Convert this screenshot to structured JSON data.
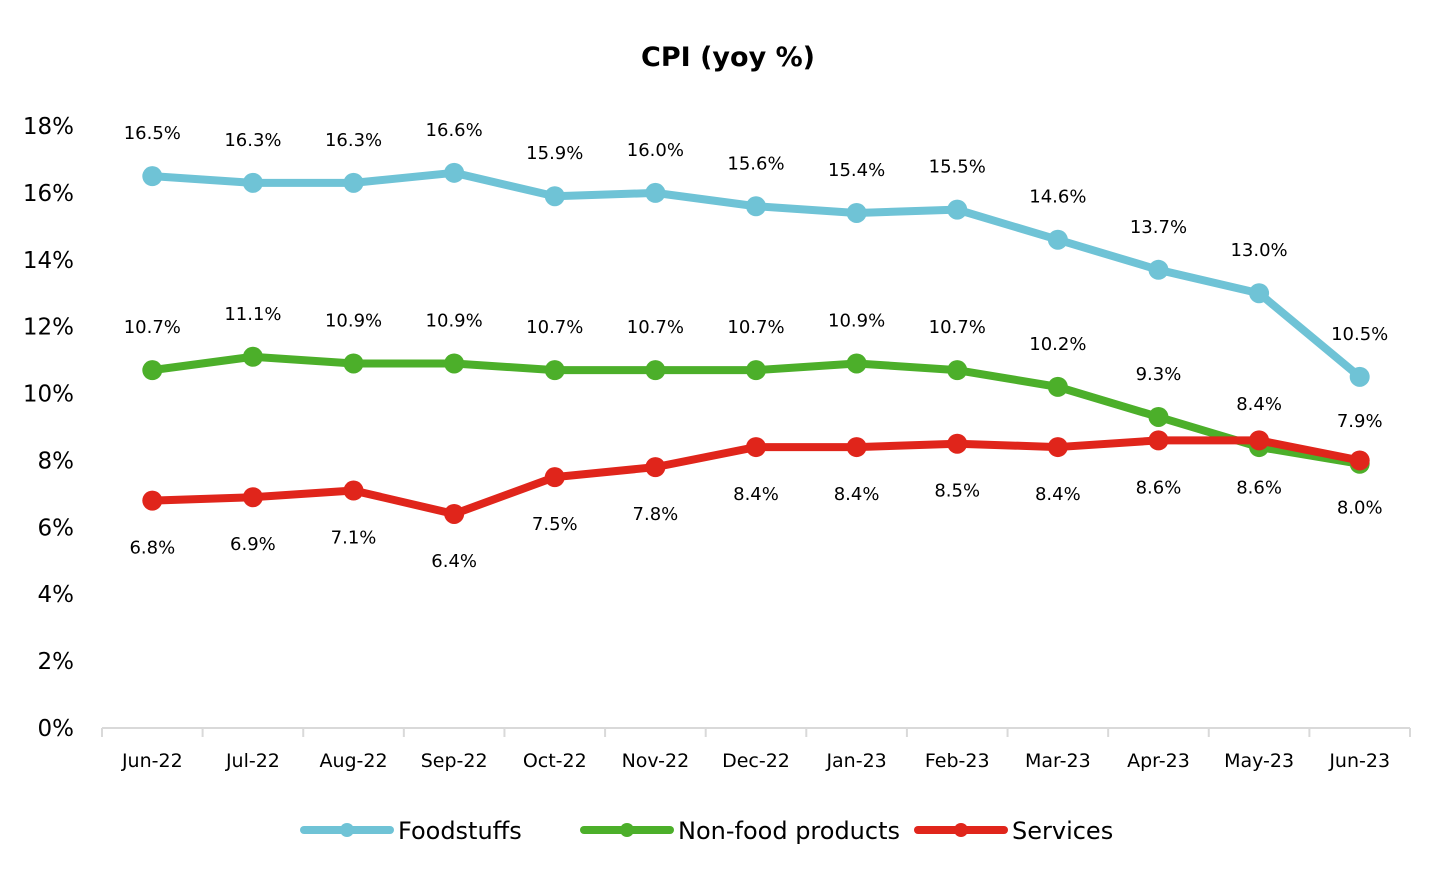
{
  "chart_data": {
    "type": "line",
    "title": "CPI (yoy %)",
    "xlabel": "",
    "ylabel": "",
    "ylim": [
      0,
      18
    ],
    "ytick_step": 2,
    "ytick_suffix": "%",
    "grid": false,
    "legend_position": "bottom",
    "categories": [
      "Jun-22",
      "Jul-22",
      "Aug-22",
      "Sep-22",
      "Oct-22",
      "Nov-22",
      "Dec-22",
      "Jan-23",
      "Feb-23",
      "Mar-23",
      "Apr-23",
      "May-23",
      "Jun-23"
    ],
    "series": [
      {
        "name": "Foodstuffs",
        "color": "#6fc3d6",
        "values": [
          16.5,
          16.3,
          16.3,
          16.6,
          15.9,
          16.0,
          15.6,
          15.4,
          15.5,
          14.6,
          13.7,
          13.0,
          10.5
        ],
        "labels": [
          "16.5%",
          "16.3%",
          "16.3%",
          "16.6%",
          "15.9%",
          "16.0%",
          "15.6%",
          "15.4%",
          "15.5%",
          "14.6%",
          "13.7%",
          "13.0%",
          "10.5%"
        ],
        "label_side": "above"
      },
      {
        "name": "Non-food products",
        "color": "#4caf2a",
        "values": [
          10.7,
          11.1,
          10.9,
          10.9,
          10.7,
          10.7,
          10.7,
          10.9,
          10.7,
          10.2,
          9.3,
          8.4,
          7.9
        ],
        "labels": [
          "10.7%",
          "11.1%",
          "10.9%",
          "10.9%",
          "10.7%",
          "10.7%",
          "10.7%",
          "10.9%",
          "10.7%",
          "10.2%",
          "9.3%",
          "8.4%",
          "7.9%"
        ],
        "label_side": "above"
      },
      {
        "name": "Services",
        "color": "#e0251b",
        "values": [
          6.8,
          6.9,
          7.1,
          6.4,
          7.5,
          7.8,
          8.4,
          8.4,
          8.5,
          8.4,
          8.6,
          8.6,
          8.0
        ],
        "labels": [
          "6.8%",
          "6.9%",
          "7.1%",
          "6.4%",
          "7.5%",
          "7.8%",
          "8.4%",
          "8.4%",
          "8.5%",
          "8.4%",
          "8.6%",
          "8.6%",
          "8.0%"
        ],
        "label_side": "below"
      }
    ]
  }
}
